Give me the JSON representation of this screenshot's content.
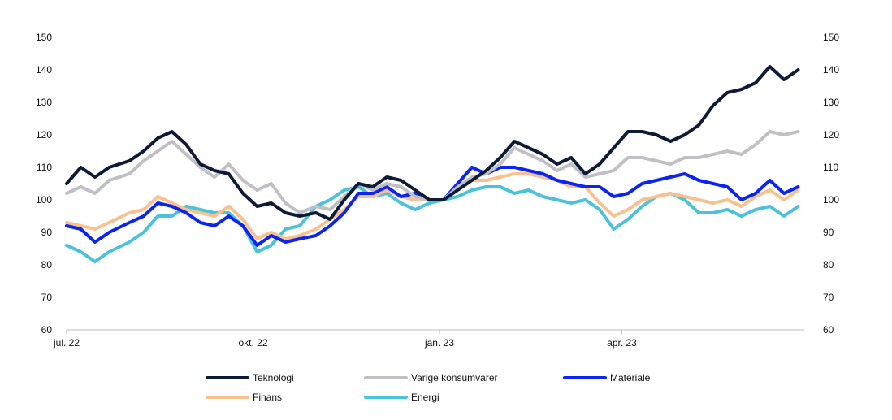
{
  "chart_data": {
    "type": "line",
    "title": "",
    "xlabel": "",
    "ylabel": "",
    "ylim": [
      60,
      150
    ],
    "yticks": [
      60,
      70,
      80,
      90,
      100,
      110,
      120,
      130,
      140,
      150
    ],
    "y_axes": "left-and-right",
    "grid": false,
    "legend_position": "bottom",
    "x_start": "2022-07-01",
    "x_end": "2023-06-30",
    "x_ticks": [
      {
        "date": "2022-07-01",
        "label": "jul. 22"
      },
      {
        "date": "2022-10-01",
        "label": "okt. 22"
      },
      {
        "date": "2023-01-01",
        "label": "jan. 23"
      },
      {
        "date": "2023-04-01",
        "label": "apr. 23"
      }
    ],
    "series": [
      {
        "name": "Teknologi",
        "color": "#0d1b36",
        "points": [
          [
            "2022-07-01",
            105
          ],
          [
            "2022-07-08",
            110
          ],
          [
            "2022-07-15",
            107
          ],
          [
            "2022-07-22",
            110
          ],
          [
            "2022-08-01",
            112
          ],
          [
            "2022-08-08",
            115
          ],
          [
            "2022-08-15",
            119
          ],
          [
            "2022-08-22",
            121
          ],
          [
            "2022-08-29",
            117
          ],
          [
            "2022-09-05",
            111
          ],
          [
            "2022-09-12",
            109
          ],
          [
            "2022-09-19",
            108
          ],
          [
            "2022-09-26",
            102
          ],
          [
            "2022-10-03",
            98
          ],
          [
            "2022-10-10",
            99
          ],
          [
            "2022-10-17",
            96
          ],
          [
            "2022-10-24",
            95
          ],
          [
            "2022-11-01",
            96
          ],
          [
            "2022-11-08",
            94
          ],
          [
            "2022-11-15",
            100
          ],
          [
            "2022-11-22",
            105
          ],
          [
            "2022-11-29",
            104
          ],
          [
            "2022-12-06",
            107
          ],
          [
            "2022-12-13",
            106
          ],
          [
            "2022-12-20",
            103
          ],
          [
            "2022-12-27",
            100
          ],
          [
            "2023-01-03",
            100
          ],
          [
            "2023-01-10",
            103
          ],
          [
            "2023-01-17",
            106
          ],
          [
            "2023-01-24",
            109
          ],
          [
            "2023-01-31",
            113
          ],
          [
            "2023-02-07",
            118
          ],
          [
            "2023-02-14",
            116
          ],
          [
            "2023-02-21",
            114
          ],
          [
            "2023-02-28",
            111
          ],
          [
            "2023-03-07",
            113
          ],
          [
            "2023-03-14",
            108
          ],
          [
            "2023-03-21",
            111
          ],
          [
            "2023-03-28",
            116
          ],
          [
            "2023-04-04",
            121
          ],
          [
            "2023-04-11",
            121
          ],
          [
            "2023-04-18",
            120
          ],
          [
            "2023-04-25",
            118
          ],
          [
            "2023-05-02",
            120
          ],
          [
            "2023-05-09",
            123
          ],
          [
            "2023-05-16",
            129
          ],
          [
            "2023-05-23",
            133
          ],
          [
            "2023-05-30",
            134
          ],
          [
            "2023-06-06",
            136
          ],
          [
            "2023-06-13",
            141
          ],
          [
            "2023-06-20",
            137
          ],
          [
            "2023-06-27",
            140
          ]
        ]
      },
      {
        "name": "Varige konsumvarer",
        "color": "#c0c0c4",
        "points": [
          [
            "2022-07-01",
            102
          ],
          [
            "2022-07-08",
            104
          ],
          [
            "2022-07-15",
            102
          ],
          [
            "2022-07-22",
            106
          ],
          [
            "2022-08-01",
            108
          ],
          [
            "2022-08-08",
            112
          ],
          [
            "2022-08-15",
            115
          ],
          [
            "2022-08-22",
            118
          ],
          [
            "2022-08-29",
            114
          ],
          [
            "2022-09-05",
            110
          ],
          [
            "2022-09-12",
            107
          ],
          [
            "2022-09-19",
            111
          ],
          [
            "2022-09-26",
            106
          ],
          [
            "2022-10-03",
            103
          ],
          [
            "2022-10-10",
            105
          ],
          [
            "2022-10-17",
            99
          ],
          [
            "2022-10-24",
            96
          ],
          [
            "2022-11-01",
            98
          ],
          [
            "2022-11-08",
            97
          ],
          [
            "2022-11-15",
            101
          ],
          [
            "2022-11-22",
            105
          ],
          [
            "2022-11-29",
            103
          ],
          [
            "2022-12-06",
            105
          ],
          [
            "2022-12-13",
            104
          ],
          [
            "2022-12-20",
            101
          ],
          [
            "2022-12-27",
            100
          ],
          [
            "2023-01-03",
            100
          ],
          [
            "2023-01-10",
            104
          ],
          [
            "2023-01-17",
            107
          ],
          [
            "2023-01-24",
            108
          ],
          [
            "2023-01-31",
            111
          ],
          [
            "2023-02-07",
            116
          ],
          [
            "2023-02-14",
            114
          ],
          [
            "2023-02-21",
            112
          ],
          [
            "2023-02-28",
            109
          ],
          [
            "2023-03-07",
            111
          ],
          [
            "2023-03-14",
            107
          ],
          [
            "2023-03-21",
            108
          ],
          [
            "2023-03-28",
            109
          ],
          [
            "2023-04-04",
            113
          ],
          [
            "2023-04-11",
            113
          ],
          [
            "2023-04-18",
            112
          ],
          [
            "2023-04-25",
            111
          ],
          [
            "2023-05-02",
            113
          ],
          [
            "2023-05-09",
            113
          ],
          [
            "2023-05-16",
            114
          ],
          [
            "2023-05-23",
            115
          ],
          [
            "2023-05-30",
            114
          ],
          [
            "2023-06-06",
            117
          ],
          [
            "2023-06-13",
            121
          ],
          [
            "2023-06-20",
            120
          ],
          [
            "2023-06-27",
            121
          ]
        ]
      },
      {
        "name": "Materiale",
        "color": "#0b24f0",
        "points": [
          [
            "2022-07-01",
            92
          ],
          [
            "2022-07-08",
            91
          ],
          [
            "2022-07-15",
            87
          ],
          [
            "2022-07-22",
            90
          ],
          [
            "2022-08-01",
            93
          ],
          [
            "2022-08-08",
            95
          ],
          [
            "2022-08-15",
            99
          ],
          [
            "2022-08-22",
            98
          ],
          [
            "2022-08-29",
            96
          ],
          [
            "2022-09-05",
            93
          ],
          [
            "2022-09-12",
            92
          ],
          [
            "2022-09-19",
            95
          ],
          [
            "2022-09-26",
            92
          ],
          [
            "2022-10-03",
            86
          ],
          [
            "2022-10-10",
            89
          ],
          [
            "2022-10-17",
            87
          ],
          [
            "2022-10-24",
            88
          ],
          [
            "2022-11-01",
            89
          ],
          [
            "2022-11-08",
            92
          ],
          [
            "2022-11-15",
            96
          ],
          [
            "2022-11-22",
            102
          ],
          [
            "2022-11-29",
            102
          ],
          [
            "2022-12-06",
            104
          ],
          [
            "2022-12-13",
            101
          ],
          [
            "2022-12-20",
            102
          ],
          [
            "2022-12-27",
            100
          ],
          [
            "2023-01-03",
            100
          ],
          [
            "2023-01-10",
            105
          ],
          [
            "2023-01-17",
            110
          ],
          [
            "2023-01-24",
            108
          ],
          [
            "2023-01-31",
            110
          ],
          [
            "2023-02-07",
            110
          ],
          [
            "2023-02-14",
            109
          ],
          [
            "2023-02-21",
            108
          ],
          [
            "2023-02-28",
            106
          ],
          [
            "2023-03-07",
            105
          ],
          [
            "2023-03-14",
            104
          ],
          [
            "2023-03-21",
            104
          ],
          [
            "2023-03-28",
            101
          ],
          [
            "2023-04-04",
            102
          ],
          [
            "2023-04-11",
            105
          ],
          [
            "2023-04-18",
            106
          ],
          [
            "2023-04-25",
            107
          ],
          [
            "2023-05-02",
            108
          ],
          [
            "2023-05-09",
            106
          ],
          [
            "2023-05-16",
            105
          ],
          [
            "2023-05-23",
            104
          ],
          [
            "2023-05-30",
            100
          ],
          [
            "2023-06-06",
            102
          ],
          [
            "2023-06-13",
            106
          ],
          [
            "2023-06-20",
            102
          ],
          [
            "2023-06-27",
            104
          ]
        ]
      },
      {
        "name": "Finans",
        "color": "#f8c18e",
        "points": [
          [
            "2022-07-01",
            93
          ],
          [
            "2022-07-08",
            92
          ],
          [
            "2022-07-15",
            91
          ],
          [
            "2022-07-22",
            93
          ],
          [
            "2022-08-01",
            96
          ],
          [
            "2022-08-08",
            97
          ],
          [
            "2022-08-15",
            101
          ],
          [
            "2022-08-22",
            99
          ],
          [
            "2022-08-29",
            97
          ],
          [
            "2022-09-05",
            96
          ],
          [
            "2022-09-12",
            95
          ],
          [
            "2022-09-19",
            98
          ],
          [
            "2022-09-26",
            94
          ],
          [
            "2022-10-03",
            88
          ],
          [
            "2022-10-10",
            90
          ],
          [
            "2022-10-17",
            88
          ],
          [
            "2022-10-24",
            89
          ],
          [
            "2022-11-01",
            91
          ],
          [
            "2022-11-08",
            94
          ],
          [
            "2022-11-15",
            97
          ],
          [
            "2022-11-22",
            101
          ],
          [
            "2022-11-29",
            101
          ],
          [
            "2022-12-06",
            103
          ],
          [
            "2022-12-13",
            101
          ],
          [
            "2022-12-20",
            100
          ],
          [
            "2022-12-27",
            100
          ],
          [
            "2023-01-03",
            100
          ],
          [
            "2023-01-10",
            103
          ],
          [
            "2023-01-17",
            106
          ],
          [
            "2023-01-24",
            106
          ],
          [
            "2023-01-31",
            107
          ],
          [
            "2023-02-07",
            108
          ],
          [
            "2023-02-14",
            108
          ],
          [
            "2023-02-21",
            107
          ],
          [
            "2023-02-28",
            106
          ],
          [
            "2023-03-07",
            104
          ],
          [
            "2023-03-14",
            104
          ],
          [
            "2023-03-21",
            99
          ],
          [
            "2023-03-28",
            95
          ],
          [
            "2023-04-04",
            97
          ],
          [
            "2023-04-11",
            100
          ],
          [
            "2023-04-18",
            101
          ],
          [
            "2023-04-25",
            102
          ],
          [
            "2023-05-02",
            101
          ],
          [
            "2023-05-09",
            100
          ],
          [
            "2023-05-16",
            99
          ],
          [
            "2023-05-23",
            100
          ],
          [
            "2023-05-30",
            98
          ],
          [
            "2023-06-06",
            101
          ],
          [
            "2023-06-13",
            103
          ],
          [
            "2023-06-20",
            100
          ],
          [
            "2023-06-27",
            103
          ]
        ]
      },
      {
        "name": "Energi",
        "color": "#4cc1dc",
        "points": [
          [
            "2022-07-01",
            86
          ],
          [
            "2022-07-08",
            84
          ],
          [
            "2022-07-15",
            81
          ],
          [
            "2022-07-22",
            84
          ],
          [
            "2022-08-01",
            87
          ],
          [
            "2022-08-08",
            90
          ],
          [
            "2022-08-15",
            95
          ],
          [
            "2022-08-22",
            95
          ],
          [
            "2022-08-29",
            98
          ],
          [
            "2022-09-05",
            97
          ],
          [
            "2022-09-12",
            96
          ],
          [
            "2022-09-19",
            96
          ],
          [
            "2022-09-26",
            92
          ],
          [
            "2022-10-03",
            84
          ],
          [
            "2022-10-10",
            86
          ],
          [
            "2022-10-17",
            91
          ],
          [
            "2022-10-24",
            92
          ],
          [
            "2022-11-01",
            98
          ],
          [
            "2022-11-08",
            100
          ],
          [
            "2022-11-15",
            103
          ],
          [
            "2022-11-22",
            104
          ],
          [
            "2022-11-29",
            101
          ],
          [
            "2022-12-06",
            102
          ],
          [
            "2022-12-13",
            99
          ],
          [
            "2022-12-20",
            97
          ],
          [
            "2022-12-27",
            99
          ],
          [
            "2023-01-03",
            100
          ],
          [
            "2023-01-10",
            101
          ],
          [
            "2023-01-17",
            103
          ],
          [
            "2023-01-24",
            104
          ],
          [
            "2023-01-31",
            104
          ],
          [
            "2023-02-07",
            102
          ],
          [
            "2023-02-14",
            103
          ],
          [
            "2023-02-21",
            101
          ],
          [
            "2023-02-28",
            100
          ],
          [
            "2023-03-07",
            99
          ],
          [
            "2023-03-14",
            100
          ],
          [
            "2023-03-21",
            97
          ],
          [
            "2023-03-28",
            91
          ],
          [
            "2023-04-04",
            94
          ],
          [
            "2023-04-11",
            98
          ],
          [
            "2023-04-18",
            101
          ],
          [
            "2023-04-25",
            102
          ],
          [
            "2023-05-02",
            100
          ],
          [
            "2023-05-09",
            96
          ],
          [
            "2023-05-16",
            96
          ],
          [
            "2023-05-23",
            97
          ],
          [
            "2023-05-30",
            95
          ],
          [
            "2023-06-06",
            97
          ],
          [
            "2023-06-13",
            98
          ],
          [
            "2023-06-20",
            95
          ],
          [
            "2023-06-27",
            98
          ]
        ]
      }
    ]
  }
}
